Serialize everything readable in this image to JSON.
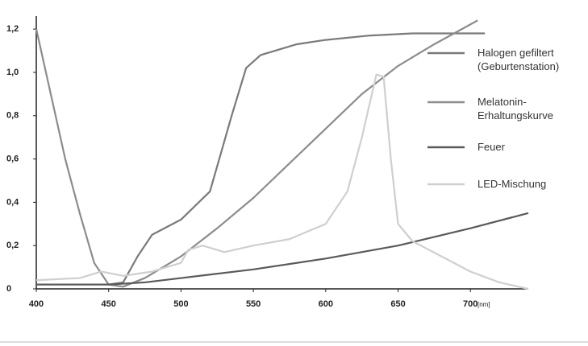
{
  "chart_data": {
    "type": "line",
    "xlabel": "[nm]",
    "xlim": [
      400,
      740
    ],
    "ylim": [
      0,
      1.26
    ],
    "xticks": [
      400,
      450,
      500,
      550,
      600,
      650,
      700
    ],
    "yticks": [
      0,
      {
        "value": 0.2,
        "label": "0,2"
      },
      {
        "value": 0.4,
        "label": "0,4"
      },
      {
        "value": 0.6,
        "label": "0,6"
      },
      {
        "value": 0.8,
        "label": "0,8"
      },
      {
        "value": 1.0,
        "label": "1,0"
      },
      {
        "value": 1.2,
        "label": "1,2"
      }
    ],
    "series": [
      {
        "name": "Halogen gefiltert (Geburtenstation)",
        "color": "#7a7a7a",
        "x": [
          450,
          460,
          470,
          480,
          500,
          520,
          535,
          545,
          555,
          580,
          600,
          630,
          660,
          710
        ],
        "values": [
          0.02,
          0.03,
          0.15,
          0.25,
          0.32,
          0.45,
          0.8,
          1.02,
          1.08,
          1.13,
          1.15,
          1.17,
          1.18,
          1.18
        ]
      },
      {
        "name": "Melatonin-Erhaltungskurve",
        "color": "#8c8c8c",
        "x": [
          400,
          410,
          420,
          430,
          440,
          450,
          460,
          475,
          500,
          525,
          550,
          575,
          600,
          625,
          650,
          675,
          705
        ],
        "values": [
          1.2,
          0.9,
          0.6,
          0.35,
          0.12,
          0.02,
          0.01,
          0.05,
          0.15,
          0.28,
          0.42,
          0.58,
          0.74,
          0.9,
          1.03,
          1.13,
          1.24
        ]
      },
      {
        "name": "Feuer",
        "color": "#5a5a5a",
        "x": [
          400,
          450,
          475,
          500,
          550,
          600,
          650,
          700,
          740
        ],
        "values": [
          0.02,
          0.02,
          0.03,
          0.05,
          0.09,
          0.14,
          0.2,
          0.28,
          0.35
        ]
      },
      {
        "name": "LED-Mischung",
        "color": "#cfcfcf",
        "x": [
          400,
          430,
          445,
          460,
          480,
          500,
          505,
          515,
          530,
          550,
          575,
          600,
          615,
          625,
          635,
          640,
          645,
          650,
          660,
          680,
          700,
          720,
          740
        ],
        "values": [
          0.04,
          0.05,
          0.08,
          0.06,
          0.08,
          0.12,
          0.18,
          0.2,
          0.17,
          0.2,
          0.23,
          0.3,
          0.45,
          0.7,
          0.99,
          0.98,
          0.6,
          0.3,
          0.22,
          0.15,
          0.08,
          0.03,
          0.0
        ]
      }
    ]
  }
}
